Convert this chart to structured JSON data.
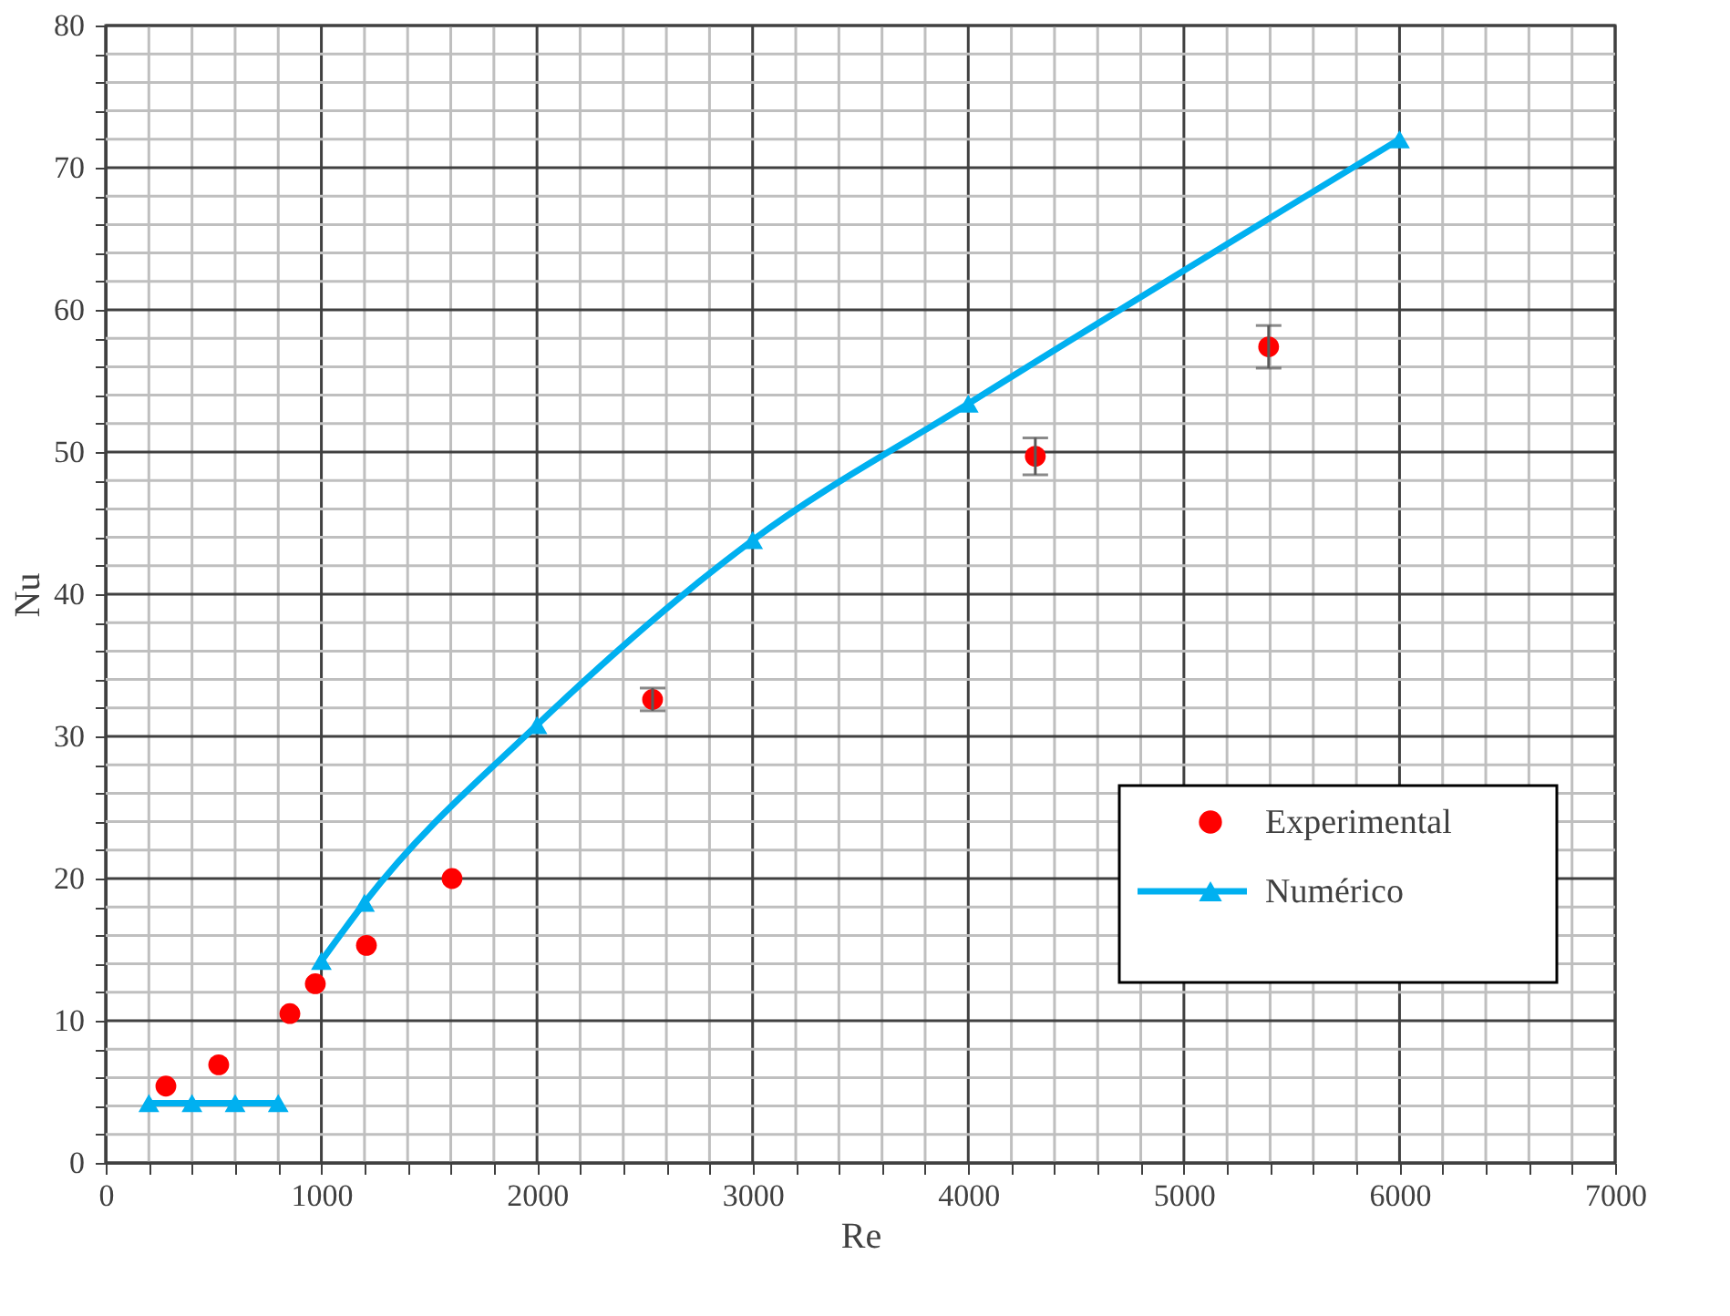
{
  "chart_data": {
    "type": "scatter",
    "xlabel": "Re",
    "ylabel": "Nu",
    "xlim": [
      0,
      7000
    ],
    "ylim": [
      0,
      80
    ],
    "xticks": [
      0,
      {
        "value": 200,
        "label": null
      },
      {
        "value": 400,
        "label": null
      },
      {
        "value": 600,
        "label": null
      },
      {
        "value": 800,
        "label": null
      },
      1000,
      {
        "value": 1200,
        "label": null
      },
      {
        "value": 1400,
        "label": null
      },
      {
        "value": 1600,
        "label": null
      },
      {
        "value": 1800,
        "label": null
      },
      2000,
      {
        "value": 2200,
        "label": null
      },
      {
        "value": 2400,
        "label": null
      },
      {
        "value": 2600,
        "label": null
      },
      {
        "value": 2800,
        "label": null
      },
      3000,
      {
        "value": 3200,
        "label": null
      },
      {
        "value": 3400,
        "label": null
      },
      {
        "value": 3600,
        "label": null
      },
      {
        "value": 3800,
        "label": null
      },
      4000,
      {
        "value": 4200,
        "label": null
      },
      {
        "value": 4400,
        "label": null
      },
      {
        "value": 4600,
        "label": null
      },
      {
        "value": 4800,
        "label": null
      },
      5000,
      {
        "value": 5200,
        "label": null
      },
      {
        "value": 5400,
        "label": null
      },
      {
        "value": 5600,
        "label": null
      },
      {
        "value": 5800,
        "label": null
      },
      6000,
      {
        "value": 6200,
        "label": null
      },
      {
        "value": 6400,
        "label": null
      },
      {
        "value": 6600,
        "label": null
      },
      {
        "value": 6800,
        "label": null
      },
      7000
    ],
    "yticks": [
      0,
      {
        "value": 2,
        "label": null
      },
      {
        "value": 4,
        "label": null
      },
      {
        "value": 6,
        "label": null
      },
      {
        "value": 8,
        "label": null
      },
      10,
      {
        "value": 12,
        "label": null
      },
      {
        "value": 14,
        "label": null
      },
      {
        "value": 16,
        "label": null
      },
      {
        "value": 18,
        "label": null
      },
      20,
      {
        "value": 22,
        "label": null
      },
      {
        "value": 24,
        "label": null
      },
      {
        "value": 26,
        "label": null
      },
      {
        "value": 28,
        "label": null
      },
      30,
      {
        "value": 32,
        "label": null
      },
      {
        "value": 34,
        "label": null
      },
      {
        "value": 36,
        "label": null
      },
      {
        "value": 38,
        "label": null
      },
      40,
      {
        "value": 42,
        "label": null
      },
      {
        "value": 44,
        "label": null
      },
      {
        "value": 46,
        "label": null
      },
      {
        "value": 48,
        "label": null
      },
      50,
      {
        "value": 52,
        "label": null
      },
      {
        "value": 54,
        "label": null
      },
      {
        "value": 56,
        "label": null
      },
      {
        "value": 58,
        "label": null
      },
      60,
      {
        "value": 62,
        "label": null
      },
      {
        "value": 64,
        "label": null
      },
      {
        "value": 66,
        "label": null
      },
      {
        "value": 68,
        "label": null
      },
      70,
      {
        "value": 72,
        "label": null
      },
      {
        "value": 74,
        "label": null
      },
      {
        "value": 76,
        "label": null
      },
      {
        "value": 78,
        "label": null
      },
      80
    ],
    "grid": true,
    "legend": "bottom right",
    "series": [
      {
        "name": "Experimental",
        "type": "scatter",
        "marker": "circle",
        "color": "#ff0000",
        "x": [
          279,
          524,
          854,
          972,
          1209,
          1606,
          2536,
          4311,
          5393
        ],
        "values": [
          5.4,
          6.9,
          10.5,
          12.6,
          15.3,
          20.0,
          32.6,
          49.7,
          57.4
        ],
        "errors": [
          null,
          null,
          null,
          null,
          null,
          null,
          0.8,
          1.3,
          1.5
        ]
      },
      {
        "name": "Numérico",
        "type": "line",
        "marker": "triangle",
        "line_style": "solid",
        "color": "#00b0f0",
        "x": [
          200,
          400,
          600,
          800,
          900,
          1000,
          1200,
          2000,
          3000,
          4000,
          6000
        ],
        "values": [
          4.2,
          4.2,
          4.2,
          4.2,
          null,
          14.2,
          18.3,
          30.8,
          43.8,
          53.4,
          72.0
        ]
      }
    ]
  }
}
